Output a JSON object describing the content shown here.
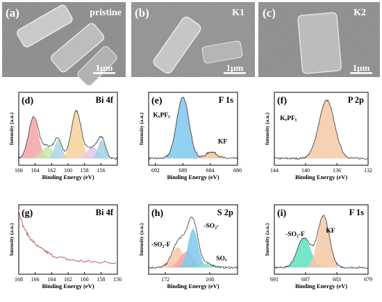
{
  "figure": {
    "sem": [
      {
        "panel_label": "(a)",
        "sample": "pristine",
        "scalebar": "1μm"
      },
      {
        "panel_label": "(b)",
        "sample": "K1",
        "scalebar": "1μm"
      },
      {
        "panel_label": "(c)",
        "sample": "K2",
        "scalebar": "1μm"
      }
    ]
  },
  "chart_data": [
    {
      "panel": "(d)",
      "type": "line",
      "title": "Bi 4f",
      "xlabel": "Binding Energy (eV)",
      "ylabel": "Intensity (a.u.)",
      "xlim": [
        166,
        154
      ],
      "xticks": [
        166,
        164,
        162,
        160,
        158,
        156
      ],
      "peaks": [
        {
          "center": 164.2,
          "height": 0.62,
          "sigma": 0.6,
          "color": "#f4a3a8"
        },
        {
          "center": 162.5,
          "height": 0.18,
          "sigma": 0.7,
          "color": "#c8e6a8"
        },
        {
          "center": 161.2,
          "height": 0.28,
          "sigma": 0.45,
          "color": "#a8d8e8"
        },
        {
          "center": 159.0,
          "height": 0.72,
          "sigma": 0.6,
          "color": "#f6d29a"
        },
        {
          "center": 157.0,
          "height": 0.17,
          "sigma": 0.7,
          "color": "#e6c6ea"
        },
        {
          "center": 155.9,
          "height": 0.28,
          "sigma": 0.45,
          "color": "#9fd3e8"
        }
      ]
    },
    {
      "panel": "(e)",
      "type": "line",
      "title": "F 1s",
      "xlabel": "Binding Energy (eV)",
      "ylabel": "Intensity (a.u.)",
      "xlim": [
        693,
        680
      ],
      "xticks": [
        692,
        688,
        684,
        680
      ],
      "annotations": [
        "KₓPFᵧ",
        "KF"
      ],
      "peaks": [
        {
          "name": "KₓPFᵧ",
          "center": 688.0,
          "height": 0.93,
          "sigma": 0.9,
          "color": "#7ec8ec"
        },
        {
          "name": "KF",
          "center": 683.8,
          "height": 0.1,
          "sigma": 0.8,
          "color": "#f3c49a"
        }
      ]
    },
    {
      "panel": "(f)",
      "type": "line",
      "title": "P 2p",
      "xlabel": "Binding Energy (eV)",
      "ylabel": "Intensity (a.u.)",
      "xlim": [
        144,
        132
      ],
      "xticks": [
        144,
        140,
        136,
        132
      ],
      "annotations": [
        "KₓPFᵧ"
      ],
      "peaks": [
        {
          "name": "KₓPFᵧ",
          "center": 137.3,
          "height": 0.88,
          "sigma": 1.0,
          "color": "#f6c9a6"
        }
      ]
    },
    {
      "panel": "(g)",
      "type": "line",
      "title": "Bi 4f",
      "xlabel": "Binding Energy (eV)",
      "ylabel": "Intensity (a.u.)",
      "xlim": [
        168,
        156
      ],
      "xticks": [
        168,
        166,
        164,
        162,
        160,
        158,
        156
      ],
      "series": [
        {
          "x": [
            168,
            167.5,
            167,
            166.5,
            166,
            165.5,
            165,
            164.5,
            164,
            163,
            162,
            161,
            160,
            159,
            158,
            157,
            156
          ],
          "y": [
            0.95,
            0.72,
            0.58,
            0.49,
            0.42,
            0.36,
            0.32,
            0.28,
            0.24,
            0.2,
            0.17,
            0.15,
            0.14,
            0.13,
            0.13,
            0.12,
            0.13
          ]
        }
      ]
    },
    {
      "panel": "(h)",
      "type": "line",
      "title": "S 2p",
      "xlabel": "Binding Energy (eV)",
      "ylabel": "Intensity (a.u.)",
      "xlim": [
        173.5,
        165.5
      ],
      "xticks": [
        172,
        168
      ],
      "annotations": [
        "-SO₂-F",
        "-SO₂-",
        "SOₓ"
      ],
      "peaks": [
        {
          "name": "-SO₂-F",
          "center": 170.9,
          "height": 0.32,
          "sigma": 0.55,
          "color": "#f7c7a4"
        },
        {
          "name": "",
          "center": 170.1,
          "height": 0.25,
          "sigma": 0.6,
          "color": "#f3a6a6"
        },
        {
          "name": "-SO₂-",
          "center": 169.5,
          "height": 0.62,
          "sigma": 0.45,
          "color": "#7ec8ec"
        },
        {
          "name": "SOₓ",
          "center": 168.3,
          "height": 0.06,
          "sigma": 0.6,
          "color": "#8fe0c8"
        }
      ]
    },
    {
      "panel": "(i)",
      "type": "line",
      "title": "F 1s",
      "xlabel": "Binding Energy (eV)",
      "ylabel": "Intensity (a.u.)",
      "xlim": [
        691,
        679
      ],
      "xticks": [
        691,
        687,
        683,
        679
      ],
      "annotations": [
        "-SO₂-F",
        "KF"
      ],
      "peaks": [
        {
          "name": "-SO₂-F",
          "center": 687.2,
          "height": 0.48,
          "sigma": 0.85,
          "color": "#5fe0c0"
        },
        {
          "name": "KF",
          "center": 684.7,
          "height": 0.82,
          "sigma": 0.75,
          "color": "#f6c7a6"
        }
      ]
    }
  ]
}
